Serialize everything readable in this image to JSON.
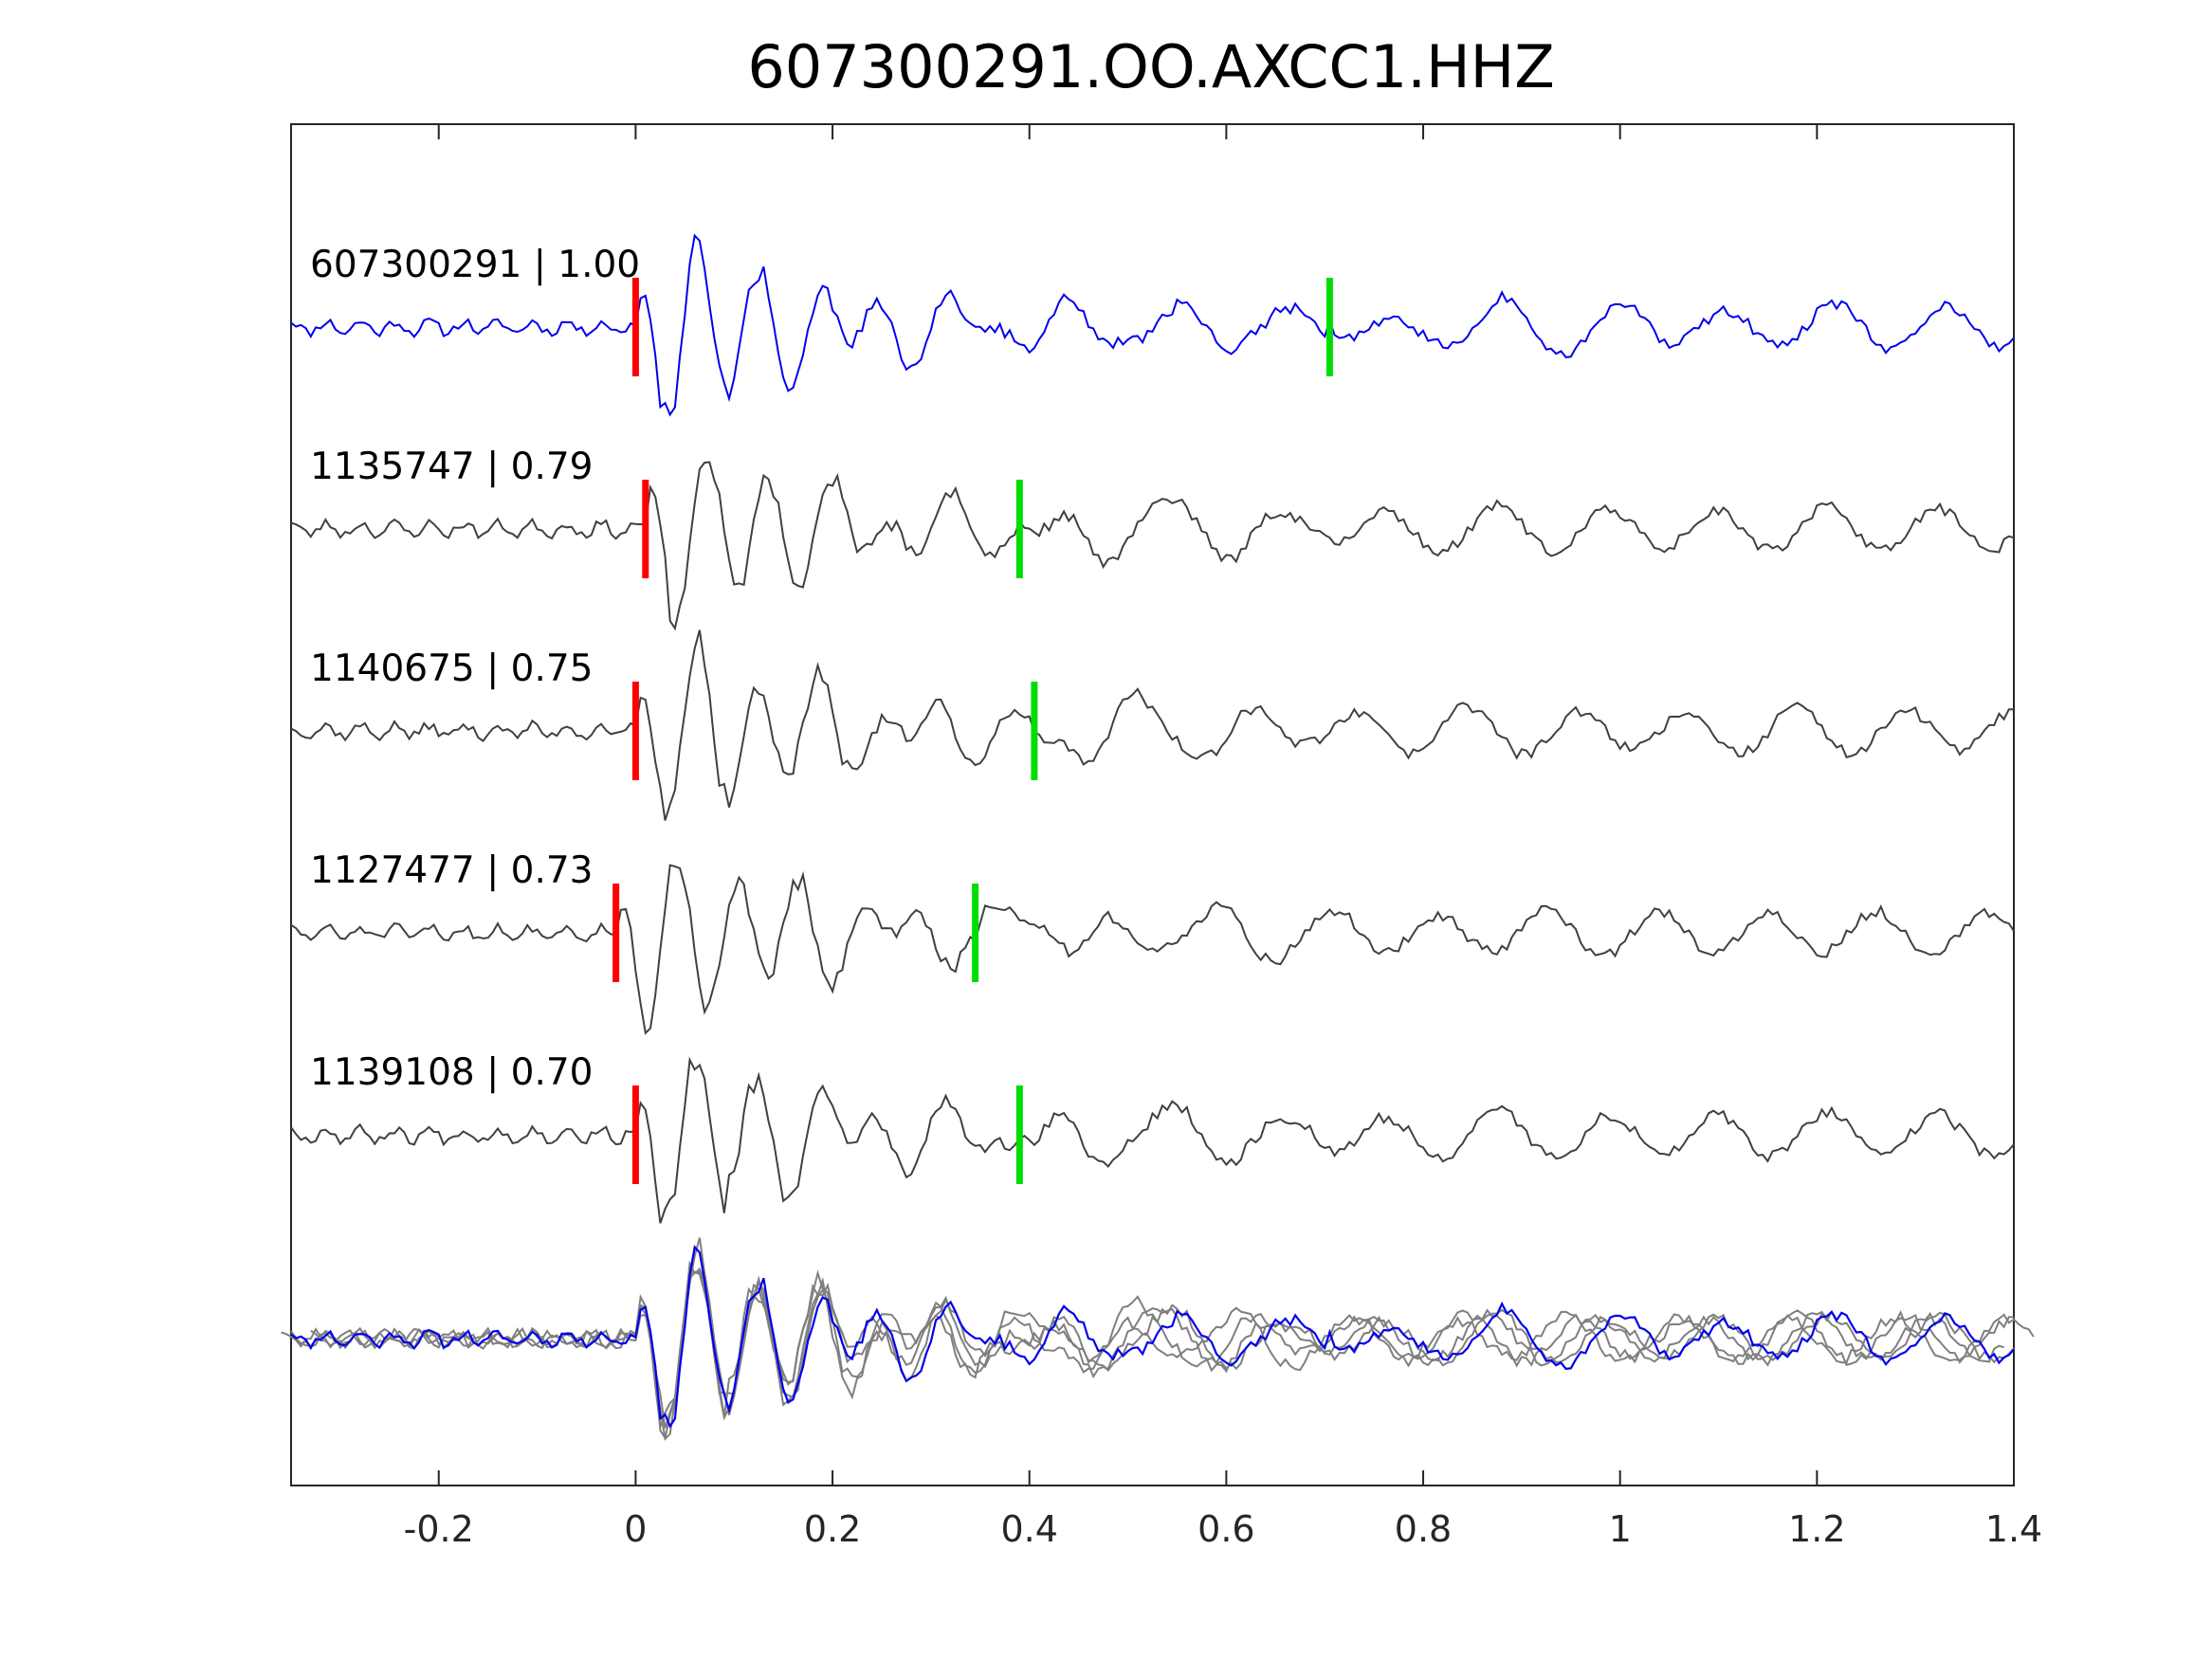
{
  "chart_data": {
    "type": "line",
    "title": "607300291.OO.AXCC1.HHZ",
    "xlabel": "",
    "ylabel": "",
    "xlim": [
      -0.35,
      1.4
    ],
    "xticks": [
      -0.2,
      0,
      0.2,
      0.4,
      0.6,
      0.8,
      1,
      1.2,
      1.4
    ],
    "xtick_labels": [
      "-0.2",
      "0",
      "0.2",
      "0.4",
      "0.6",
      "0.8",
      "1",
      "1.2",
      "1.4"
    ],
    "yticks_shown": false,
    "grid": false,
    "legend": "none",
    "colors": {
      "template_trace": "#0000ee",
      "match_trace": "#404040",
      "overlay_trace": "#7f7f7f",
      "p_pick": "#ff0000",
      "s_pick": "#00dd00",
      "axes": "#262626"
    },
    "traces": [
      {
        "label": "607300291 | 1.00",
        "event_id": "607300291",
        "correlation": 1.0,
        "p_pick": 0.0,
        "s_pick": 0.705,
        "seed": 11
      },
      {
        "label": "1135747 | 0.79",
        "event_id": "1135747",
        "correlation": 0.79,
        "p_pick": 0.01,
        "s_pick": 0.39,
        "seed": 23
      },
      {
        "label": "1140675 | 0.75",
        "event_id": "1140675",
        "correlation": 0.75,
        "p_pick": 0.0,
        "s_pick": 0.405,
        "seed": 37
      },
      {
        "label": "1127477 | 0.73",
        "event_id": "1127477",
        "correlation": 0.73,
        "p_pick": -0.02,
        "s_pick": 0.345,
        "seed": 51
      },
      {
        "label": "1139108 | 0.70",
        "event_id": "1139108",
        "correlation": 0.7,
        "p_pick": 0.0,
        "s_pick": 0.39,
        "seed": 67
      }
    ],
    "overlay": {
      "description_shown": false,
      "includes_traces": "all"
    },
    "sample_interval": 0.005
  }
}
